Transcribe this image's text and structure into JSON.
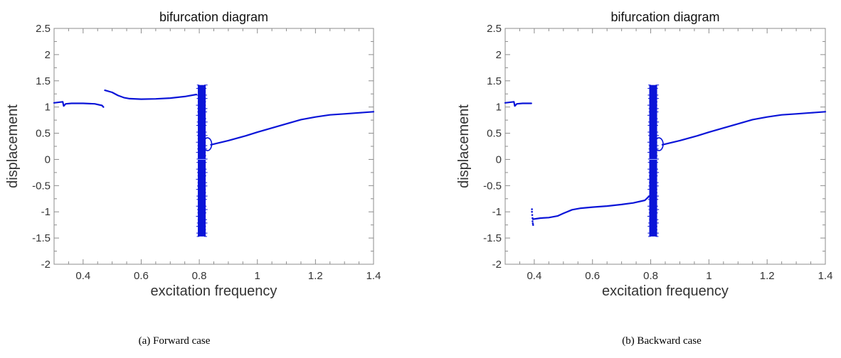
{
  "chart_data": [
    {
      "type": "scatter",
      "title": "bifurcation diagram",
      "xlabel": "excitation frequency",
      "ylabel": "displacement",
      "xlim": [
        0.3,
        1.4
      ],
      "ylim": [
        -2,
        2.5
      ],
      "xticks": [
        "0.4",
        "0.6",
        "0.8",
        "1",
        "1.2",
        "1.4"
      ],
      "yticks": [
        "2.5",
        "2",
        "1.5",
        "1",
        "0.5",
        "0",
        "-0.5",
        "-1",
        "-1.5",
        "-2"
      ],
      "grid": false,
      "color": "#0a14d8",
      "caption": "(a)  Forward case",
      "series": [
        {
          "x": [
            0.3,
            0.33,
            0.333,
            0.34,
            0.36,
            0.4,
            0.44,
            0.465,
            0.47
          ],
          "y": [
            1.08,
            1.1,
            1.02,
            1.06,
            1.07,
            1.07,
            1.06,
            1.03,
            1.0
          ]
        },
        {
          "x": [
            0.475,
            0.5,
            0.52,
            0.54,
            0.56,
            0.6,
            0.65,
            0.7,
            0.75,
            0.79
          ],
          "y": [
            1.32,
            1.28,
            1.22,
            1.18,
            1.16,
            1.15,
            1.155,
            1.17,
            1.2,
            1.24
          ]
        },
        {
          "x": [
            0.84,
            0.9,
            0.96,
            1.0,
            1.05,
            1.1,
            1.15,
            1.2,
            1.25,
            1.3,
            1.35,
            1.4
          ],
          "y": [
            0.28,
            0.36,
            0.45,
            0.52,
            0.6,
            0.68,
            0.76,
            0.81,
            0.85,
            0.87,
            0.89,
            0.91
          ]
        }
      ],
      "chaos_band": {
        "x": [
          0.795,
          0.822
        ],
        "y": [
          -1.47,
          1.42
        ]
      },
      "loop": {
        "x": 0.828,
        "y": 0.29
      }
    },
    {
      "type": "scatter",
      "title": "bifurcation diagram",
      "xlabel": "excitation frequency",
      "ylabel": "displacement",
      "xlim": [
        0.3,
        1.4
      ],
      "ylim": [
        -2,
        2.5
      ],
      "xticks": [
        "0.4",
        "0.6",
        "0.8",
        "1",
        "1.2",
        "1.4"
      ],
      "yticks": [
        "2.5",
        "2",
        "1.5",
        "1",
        "0.5",
        "0",
        "-0.5",
        "-1",
        "-1.5",
        "-2"
      ],
      "grid": false,
      "color": "#0a14d8",
      "caption": "(b)  Backward case",
      "series": [
        {
          "x": [
            0.3,
            0.33,
            0.333,
            0.34,
            0.36,
            0.39
          ],
          "y": [
            1.08,
            1.1,
            1.02,
            1.06,
            1.07,
            1.07
          ]
        },
        {
          "x": [
            0.395,
            0.42,
            0.45,
            0.48,
            0.5,
            0.53,
            0.56,
            0.6,
            0.65,
            0.7,
            0.74,
            0.78,
            0.795
          ],
          "y": [
            -1.14,
            -1.12,
            -1.11,
            -1.08,
            -1.03,
            -0.96,
            -0.93,
            -0.91,
            -0.89,
            -0.86,
            -0.83,
            -0.78,
            -0.7
          ]
        },
        {
          "x": [
            0.84,
            0.9,
            0.96,
            1.0,
            1.05,
            1.1,
            1.15,
            1.2,
            1.25,
            1.3,
            1.35,
            1.4
          ],
          "y": [
            0.28,
            0.36,
            0.45,
            0.52,
            0.6,
            0.68,
            0.76,
            0.81,
            0.85,
            0.87,
            0.89,
            0.91
          ]
        }
      ],
      "scatter_points": {
        "x": [
          0.392,
          0.392,
          0.393,
          0.394,
          0.394,
          0.395,
          0.396
        ],
        "y": [
          -0.95,
          -1.0,
          -1.06,
          -1.12,
          -1.18,
          -1.22,
          -1.25
        ]
      },
      "chaos_band": {
        "x": [
          0.795,
          0.822
        ],
        "y": [
          -1.47,
          1.42
        ]
      },
      "loop": {
        "x": 0.828,
        "y": 0.29
      }
    }
  ]
}
